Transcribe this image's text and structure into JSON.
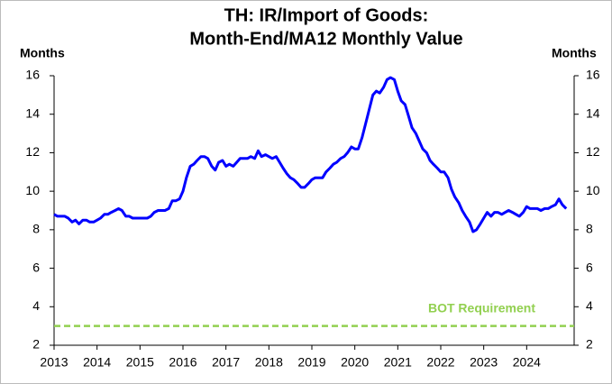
{
  "chart_data": {
    "type": "line",
    "title": [
      "TH: IR/Import of Goods:",
      "Month-End/MA12 Monthly Value"
    ],
    "ylabel": "Months",
    "y2label": "Months",
    "x": [
      2013,
      2013.08,
      2013.17,
      2013.25,
      2013.33,
      2013.42,
      2013.5,
      2013.58,
      2013.67,
      2013.75,
      2013.83,
      2013.92,
      2014,
      2014.08,
      2014.17,
      2014.25,
      2014.33,
      2014.42,
      2014.5,
      2014.58,
      2014.67,
      2014.75,
      2014.83,
      2014.92,
      2015,
      2015.08,
      2015.17,
      2015.25,
      2015.33,
      2015.42,
      2015.5,
      2015.58,
      2015.67,
      2015.75,
      2015.83,
      2015.92,
      2016,
      2016.08,
      2016.17,
      2016.25,
      2016.33,
      2016.42,
      2016.5,
      2016.58,
      2016.67,
      2016.75,
      2016.83,
      2016.92,
      2017,
      2017.08,
      2017.17,
      2017.25,
      2017.33,
      2017.42,
      2017.5,
      2017.58,
      2017.67,
      2017.75,
      2017.83,
      2017.92,
      2018,
      2018.08,
      2018.17,
      2018.25,
      2018.33,
      2018.42,
      2018.5,
      2018.58,
      2018.67,
      2018.75,
      2018.83,
      2018.92,
      2019,
      2019.08,
      2019.17,
      2019.25,
      2019.33,
      2019.42,
      2019.5,
      2019.58,
      2019.67,
      2019.75,
      2019.83,
      2019.92,
      2020,
      2020.08,
      2020.17,
      2020.25,
      2020.33,
      2020.42,
      2020.5,
      2020.58,
      2020.67,
      2020.75,
      2020.83,
      2020.92,
      2021,
      2021.08,
      2021.17,
      2021.25,
      2021.33,
      2021.42,
      2021.5,
      2021.58,
      2021.67,
      2021.75,
      2021.83,
      2021.92,
      2022,
      2022.08,
      2022.17,
      2022.25,
      2022.33,
      2022.42,
      2022.5,
      2022.58,
      2022.67,
      2022.75,
      2022.83,
      2022.92,
      2023,
      2023.08,
      2023.17,
      2023.25,
      2023.33,
      2023.42,
      2023.5,
      2023.58,
      2023.67,
      2023.75,
      2023.83,
      2023.92,
      2024,
      2024.08,
      2024.17,
      2024.25,
      2024.33,
      2024.42,
      2024.5,
      2024.58,
      2024.67,
      2024.75,
      2024.83,
      2024.92
    ],
    "series": [
      {
        "name": "IR/Import of Goods",
        "color": "#0000ff",
        "values": [
          8.8,
          8.7,
          8.7,
          8.7,
          8.6,
          8.4,
          8.5,
          8.3,
          8.5,
          8.5,
          8.4,
          8.4,
          8.5,
          8.6,
          8.8,
          8.8,
          8.9,
          9.0,
          9.1,
          9.0,
          8.7,
          8.7,
          8.6,
          8.6,
          8.6,
          8.6,
          8.6,
          8.7,
          8.9,
          9.0,
          9.0,
          9.0,
          9.1,
          9.5,
          9.5,
          9.6,
          10.0,
          10.7,
          11.3,
          11.4,
          11.6,
          11.8,
          11.8,
          11.7,
          11.3,
          11.1,
          11.5,
          11.6,
          11.3,
          11.4,
          11.3,
          11.5,
          11.7,
          11.7,
          11.7,
          11.8,
          11.7,
          12.1,
          11.8,
          11.9,
          11.8,
          11.7,
          11.8,
          11.5,
          11.2,
          10.9,
          10.7,
          10.6,
          10.4,
          10.2,
          10.2,
          10.4,
          10.6,
          10.7,
          10.7,
          10.7,
          11.0,
          11.2,
          11.4,
          11.5,
          11.7,
          11.8,
          12.0,
          12.3,
          12.2,
          12.2,
          12.8,
          13.5,
          14.2,
          15.0,
          15.2,
          15.1,
          15.4,
          15.8,
          15.9,
          15.8,
          15.2,
          14.7,
          14.5,
          13.9,
          13.3,
          13.0,
          12.6,
          12.2,
          12.0,
          11.6,
          11.4,
          11.2,
          11.0,
          11.0,
          10.7,
          10.1,
          9.7,
          9.4,
          9.0,
          8.7,
          8.4,
          7.9,
          8.0,
          8.3,
          8.6,
          8.9,
          8.7,
          8.9,
          8.9,
          8.8,
          8.9,
          9.0,
          8.9,
          8.8,
          8.7,
          8.9,
          9.2,
          9.1,
          9.1,
          9.1,
          9.0,
          9.1,
          9.1,
          9.2,
          9.3,
          9.6,
          9.3,
          9.1
        ]
      }
    ],
    "reference_line": {
      "value": 3,
      "label": "BOT Requirement",
      "color": "#92d050"
    },
    "xlim": [
      2013,
      2025
    ],
    "xticks": [
      2013,
      2014,
      2015,
      2016,
      2017,
      2018,
      2019,
      2020,
      2021,
      2022,
      2023,
      2024
    ],
    "ylim": [
      2,
      16
    ],
    "yticks": [
      2,
      4,
      6,
      8,
      10,
      12,
      14,
      16
    ],
    "y2lim": [
      2,
      16
    ],
    "y2ticks": [
      2,
      4,
      6,
      8,
      10,
      12,
      14,
      16
    ],
    "grid": false
  }
}
